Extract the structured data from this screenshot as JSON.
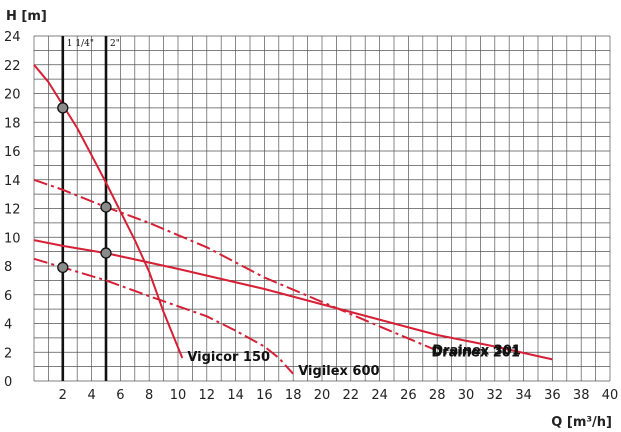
{
  "chart_data": {
    "type": "line",
    "xlabel": "Q [m³/h]",
    "ylabel": "H [m]",
    "xlim": [
      0,
      40
    ],
    "ylim": [
      0,
      24
    ],
    "x_ticks": [
      2,
      4,
      6,
      8,
      10,
      12,
      14,
      16,
      18,
      20,
      22,
      24,
      26,
      28,
      30,
      32,
      34,
      36,
      38,
      40
    ],
    "y_ticks": [
      0,
      2,
      4,
      6,
      8,
      10,
      12,
      14,
      16,
      18,
      20,
      22,
      24
    ],
    "grid": true,
    "colors": {
      "series": "#d62035",
      "grid": "#555555",
      "pipe": "#111111",
      "marker_fill": "#8a8a8a"
    },
    "series": [
      {
        "name": "Vigicor 150",
        "style": "solid",
        "x": [
          0,
          1,
          2,
          3,
          4,
          5,
          6,
          7,
          8,
          9,
          10.3
        ],
        "y": [
          22,
          20.8,
          19.2,
          17.6,
          15.7,
          13.8,
          11.8,
          9.8,
          7.6,
          4.8,
          1.6
        ]
      },
      {
        "name": "Vigilex 600",
        "style": "dashdot",
        "x": [
          0,
          2,
          5,
          8,
          12,
          14,
          16,
          17,
          18
        ],
        "y": [
          8.5,
          7.9,
          7,
          5.9,
          4.5,
          3.5,
          2.4,
          1.6,
          0.5
        ]
      },
      {
        "name": "Drainex 201",
        "style": "dashdot",
        "x": [
          0,
          2,
          5,
          8,
          12,
          16,
          20,
          24,
          27.8
        ],
        "y": [
          14,
          13.3,
          12.1,
          11,
          9.3,
          7.2,
          5.5,
          3.8,
          2.2
        ]
      },
      {
        "name": "Drainex 301",
        "style": "solid",
        "x": [
          0,
          2,
          5,
          10,
          16,
          22,
          28,
          32,
          36
        ],
        "y": [
          9.8,
          9.4,
          8.9,
          7.8,
          6.4,
          4.8,
          3.2,
          2.4,
          1.5
        ]
      }
    ],
    "pipe_lines": [
      {
        "label": "1 1/4\"",
        "x": 2
      },
      {
        "label": "2\"",
        "x": 5
      }
    ],
    "intersection_points": [
      {
        "x": 2,
        "y": 19
      },
      {
        "x": 2,
        "y": 7.9
      },
      {
        "x": 5,
        "y": 12.1
      },
      {
        "x": 5,
        "y": 8.9
      }
    ]
  }
}
